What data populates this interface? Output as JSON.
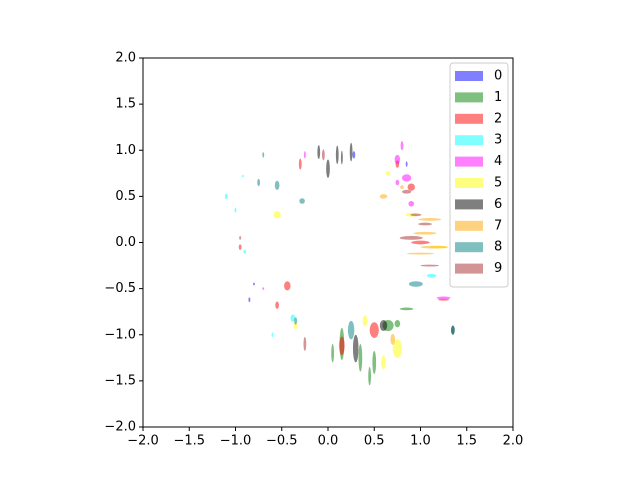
{
  "chart_data": {
    "type": "ellipse",
    "alpha": 0.5,
    "legend": "upper right",
    "xlim": [
      -2,
      2
    ],
    "ylim": [
      -2,
      2
    ],
    "xticks": [
      {
        "value": -2,
        "label": "−2.0"
      },
      {
        "value": -1.5,
        "label": "−1.5"
      },
      {
        "value": -1,
        "label": "−1.0"
      },
      {
        "value": -0.5,
        "label": "−0.5"
      },
      {
        "value": 0,
        "label": "0.0"
      },
      {
        "value": 0.5,
        "label": "0.5"
      },
      {
        "value": 1,
        "label": "1.0"
      },
      {
        "value": 1.5,
        "label": "1.5"
      },
      {
        "value": 2,
        "label": "2.0"
      }
    ],
    "yticks": [
      {
        "value": -2,
        "label": "−2.0"
      },
      {
        "value": -1.5,
        "label": "−1.5"
      },
      {
        "value": -1,
        "label": "−1.0"
      },
      {
        "value": -0.5,
        "label": "−0.5"
      },
      {
        "value": 0,
        "label": "0.0"
      },
      {
        "value": 0.5,
        "label": "0.5"
      },
      {
        "value": 1,
        "label": "1.0"
      },
      {
        "value": 1.5,
        "label": "1.5"
      },
      {
        "value": 2,
        "label": "2.0"
      }
    ],
    "series": [
      {
        "name": "0",
        "color": "#0000ff",
        "x": [
          0.28,
          -0.85,
          0.85,
          -0.8
        ],
        "values": [
          0.95,
          -0.62,
          0.85,
          -0.45
        ],
        "widths": [
          0.03,
          0.02,
          0.02,
          0.02
        ],
        "heights": [
          0.08,
          0.05,
          0.06,
          0.03
        ]
      },
      {
        "name": "1",
        "color": "#008000",
        "x": [
          0.15,
          0.35,
          0.65,
          0.5,
          0.45,
          0.85,
          0.05,
          0.75
        ],
        "values": [
          -1.1,
          -1.25,
          -0.9,
          -1.3,
          -1.45,
          -0.72,
          -1.2,
          -0.88
        ],
        "widths": [
          0.05,
          0.04,
          0.12,
          0.04,
          0.03,
          0.15,
          0.03,
          0.06
        ],
        "heights": [
          0.35,
          0.3,
          0.12,
          0.25,
          0.2,
          0.03,
          0.2,
          0.08
        ]
      },
      {
        "name": "2",
        "color": "#ff0000",
        "x": [
          0.5,
          -0.55,
          -0.44,
          -0.3,
          0.9,
          1.0,
          0.15,
          -0.95,
          0.75,
          1.25
        ],
        "values": [
          -0.95,
          -0.68,
          -0.47,
          0.85,
          0.6,
          0.0,
          -1.12,
          -0.05,
          0.85,
          -0.62
        ],
        "widths": [
          0.1,
          0.04,
          0.07,
          0.03,
          0.08,
          0.2,
          0.06,
          0.03,
          0.04,
          0.12
        ],
        "heights": [
          0.17,
          0.08,
          0.1,
          0.12,
          0.08,
          0.04,
          0.2,
          0.06,
          0.08,
          0.02
        ]
      },
      {
        "name": "3",
        "color": "#00ffff",
        "x": [
          -1.1,
          -1.0,
          -0.9,
          -0.38,
          1.12,
          -0.6,
          -0.92
        ],
        "values": [
          0.5,
          0.35,
          -0.1,
          -0.82,
          -0.36,
          -1.0,
          0.72
        ],
        "widths": [
          0.03,
          0.02,
          0.03,
          0.05,
          0.1,
          0.02,
          0.02
        ],
        "heights": [
          0.06,
          0.05,
          0.04,
          0.08,
          0.04,
          0.05,
          0.03
        ]
      },
      {
        "name": "4",
        "color": "#ff00ff",
        "x": [
          0.8,
          0.75,
          0.85,
          0.9,
          1.25,
          -0.25,
          -0.7,
          0.75
        ],
        "values": [
          1.05,
          0.9,
          0.7,
          0.42,
          -0.6,
          0.95,
          -0.5,
          0.65
        ],
        "widths": [
          0.03,
          0.06,
          0.1,
          0.06,
          0.15,
          0.02,
          0.02,
          0.04
        ],
        "heights": [
          0.1,
          0.1,
          0.08,
          0.06,
          0.03,
          0.08,
          0.03,
          0.06
        ]
      },
      {
        "name": "5",
        "color": "#ffff00",
        "x": [
          0.9,
          0.75,
          -0.55,
          0.4,
          0.6,
          -0.35,
          1.2,
          0.65
        ],
        "values": [
          0.3,
          -1.15,
          0.3,
          -0.85,
          -1.3,
          -0.9,
          -0.05,
          0.75
        ],
        "widths": [
          0.12,
          0.1,
          0.08,
          0.05,
          0.05,
          0.04,
          0.2,
          0.05
        ],
        "heights": [
          0.04,
          0.2,
          0.08,
          0.12,
          0.15,
          0.08,
          0.03,
          0.05
        ]
      },
      {
        "name": "6",
        "color": "#000000",
        "x": [
          0.0,
          0.1,
          0.25,
          0.3,
          0.6,
          1.35,
          -0.1,
          0.15
        ],
        "values": [
          0.8,
          0.95,
          0.98,
          -1.15,
          -0.9,
          -0.95,
          0.98,
          0.92
        ],
        "widths": [
          0.04,
          0.03,
          0.03,
          0.06,
          0.08,
          0.04,
          0.03,
          0.02
        ],
        "heights": [
          0.2,
          0.2,
          0.2,
          0.3,
          0.12,
          0.1,
          0.15,
          0.15
        ]
      },
      {
        "name": "7",
        "color": "#ffa500",
        "x": [
          1.05,
          1.15,
          1.1,
          0.6,
          0.7,
          1.0,
          0.8
        ],
        "values": [
          0.1,
          -0.05,
          0.25,
          0.5,
          -1.05,
          -0.12,
          0.6
        ],
        "widths": [
          0.25,
          0.3,
          0.25,
          0.08,
          0.05,
          0.3,
          0.04
        ],
        "heights": [
          0.03,
          0.03,
          0.03,
          0.05,
          0.12,
          0.02,
          0.04
        ]
      },
      {
        "name": "8",
        "color": "#008080",
        "x": [
          -0.28,
          -0.55,
          0.95,
          1.35,
          0.25,
          -0.7,
          -0.75,
          -0.35
        ],
        "values": [
          0.45,
          0.62,
          -0.45,
          -0.95,
          -0.95,
          0.95,
          0.65,
          -0.85
        ],
        "widths": [
          0.06,
          0.05,
          0.15,
          0.04,
          0.07,
          0.02,
          0.03,
          0.03
        ],
        "heights": [
          0.06,
          0.1,
          0.06,
          0.1,
          0.2,
          0.06,
          0.08,
          0.08
        ]
      },
      {
        "name": "9",
        "color": "#a52a2a",
        "x": [
          0.95,
          0.9,
          0.85,
          1.05,
          -0.25,
          -0.95,
          1.1,
          -0.05
        ],
        "values": [
          0.3,
          0.05,
          0.55,
          0.2,
          -1.1,
          0.05,
          -0.25,
          0.95
        ],
        "widths": [
          0.12,
          0.25,
          0.1,
          0.15,
          0.03,
          0.02,
          0.2,
          0.03
        ],
        "heights": [
          0.03,
          0.04,
          0.04,
          0.03,
          0.15,
          0.04,
          0.02,
          0.12
        ]
      }
    ]
  }
}
